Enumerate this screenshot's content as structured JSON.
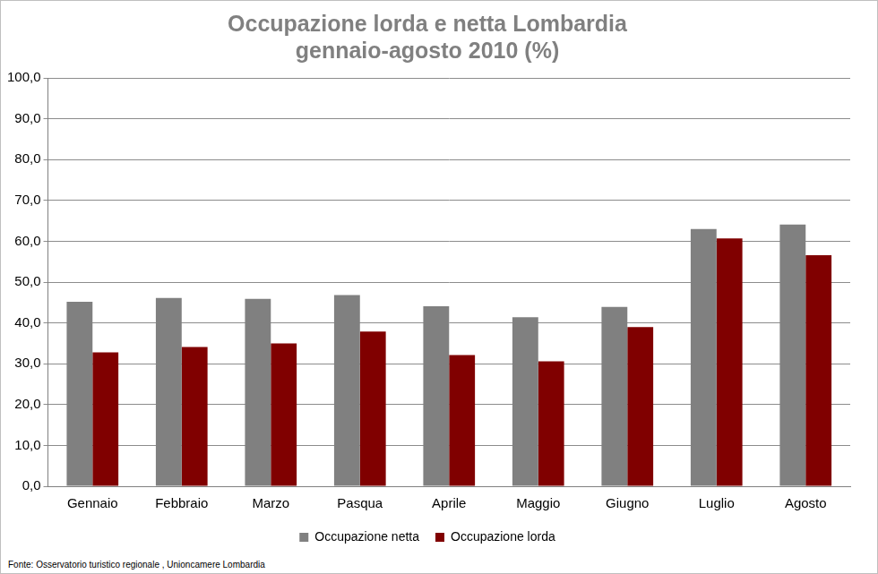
{
  "chart_data": {
    "type": "bar",
    "title": [
      "Occupazione lorda e netta Lombardia",
      "gennaio-agosto 2010 (%)"
    ],
    "source": "Fonte: Osservatorio turistico regionale , Unioncamere Lombardia",
    "categories": [
      "Gennaio",
      "Febbraio",
      "Marzo",
      "Pasqua",
      "Aprile",
      "Maggio",
      "Giugno",
      "Luglio",
      "Agosto"
    ],
    "series": [
      {
        "name": "Occupazione netta",
        "color": "#808080",
        "values": [
          45.2,
          46.1,
          45.9,
          46.8,
          44.1,
          41.4,
          43.9,
          63.0,
          64.1
        ]
      },
      {
        "name": "Occupazione lorda",
        "color": "#800000",
        "values": [
          32.8,
          34.1,
          35.0,
          37.9,
          32.1,
          30.6,
          39.0,
          60.7,
          56.6
        ]
      }
    ],
    "ylim": [
      0,
      100
    ],
    "yticks": [
      {
        "value": 0,
        "label": "0,0"
      },
      {
        "value": 10,
        "label": "10,0"
      },
      {
        "value": 20,
        "label": "20,0"
      },
      {
        "value": 30,
        "label": "30,0"
      },
      {
        "value": 40,
        "label": "40,0"
      },
      {
        "value": 50,
        "label": "50,0"
      },
      {
        "value": 60,
        "label": "60,0"
      },
      {
        "value": 70,
        "label": "70,0"
      },
      {
        "value": 80,
        "label": "80,0"
      },
      {
        "value": 90,
        "label": "90,0"
      },
      {
        "value": 100,
        "label": "100,0"
      }
    ],
    "grid": true,
    "legend": "bottom"
  }
}
